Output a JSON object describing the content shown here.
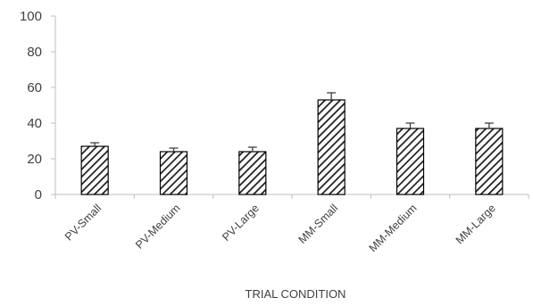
{
  "chart_data": {
    "type": "bar",
    "title": "",
    "xlabel": "TRIAL CONDITION",
    "ylabel": "",
    "ylim": [
      0,
      100
    ],
    "yticks": [
      0,
      20,
      40,
      60,
      80,
      100
    ],
    "categories": [
      "PV-Small",
      "PV-Medium",
      "PV-Large",
      "MM-Small",
      "MM-Medium",
      "MM-Large"
    ],
    "values": [
      27,
      24,
      24,
      53,
      37,
      37
    ],
    "error": [
      2,
      2,
      2.5,
      4,
      3,
      3
    ],
    "grid": false,
    "legend": "none",
    "bar_pattern": "diagonal-hatch",
    "colors": {
      "bar_fill": "#ffffff",
      "hatch": "#1a1a1a",
      "bar_stroke": "#000000",
      "axis": "#bfbfbf",
      "text": "#404040",
      "error_bar": "#404040"
    }
  }
}
